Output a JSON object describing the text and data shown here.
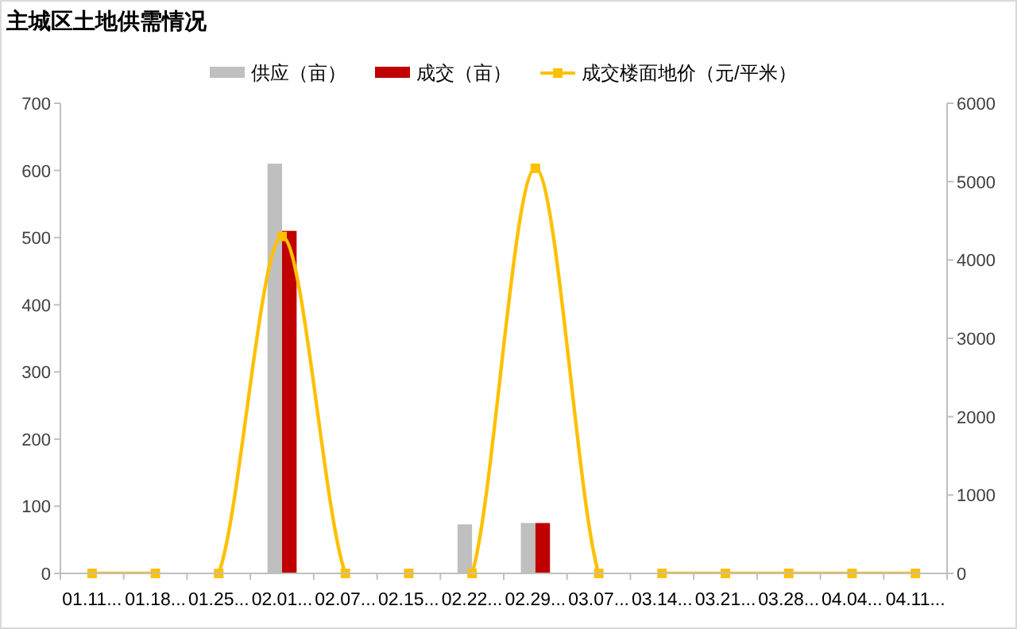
{
  "chart_data": {
    "type": "bar",
    "title": "主城区土地供需情况",
    "categories": [
      "01.11...",
      "01.18...",
      "01.25...",
      "02.01...",
      "02.07...",
      "02.15...",
      "02.22...",
      "02.29...",
      "03.07...",
      "03.14...",
      "03.21...",
      "03.28...",
      "04.04...",
      "04.11..."
    ],
    "series": [
      {
        "name": "供应（亩）",
        "color": "#bfbfbf",
        "values": [
          0,
          0,
          0,
          610,
          0,
          0,
          73,
          75,
          0,
          0,
          0,
          0,
          0,
          0
        ]
      },
      {
        "name": "成交（亩）",
        "color": "#c00000",
        "values": [
          0,
          0,
          0,
          510,
          0,
          0,
          0,
          75,
          0,
          0,
          0,
          0,
          0,
          0
        ]
      },
      {
        "name": "成交楼面地价（元/平米）",
        "color": "#ffc000",
        "type": "line",
        "axis": "y2",
        "marker": "square",
        "values": [
          0,
          0,
          0,
          4300,
          0,
          0,
          0,
          5170,
          0,
          0,
          0,
          0,
          0,
          0
        ]
      }
    ],
    "ylim": [
      0,
      700
    ],
    "yticks": [
      0,
      100,
      200,
      300,
      400,
      500,
      600,
      700
    ],
    "y2lim": [
      0,
      6000
    ],
    "y2ticks": [
      0,
      1000,
      2000,
      3000,
      4000,
      5000,
      6000
    ],
    "legend": "top",
    "grid": false
  }
}
